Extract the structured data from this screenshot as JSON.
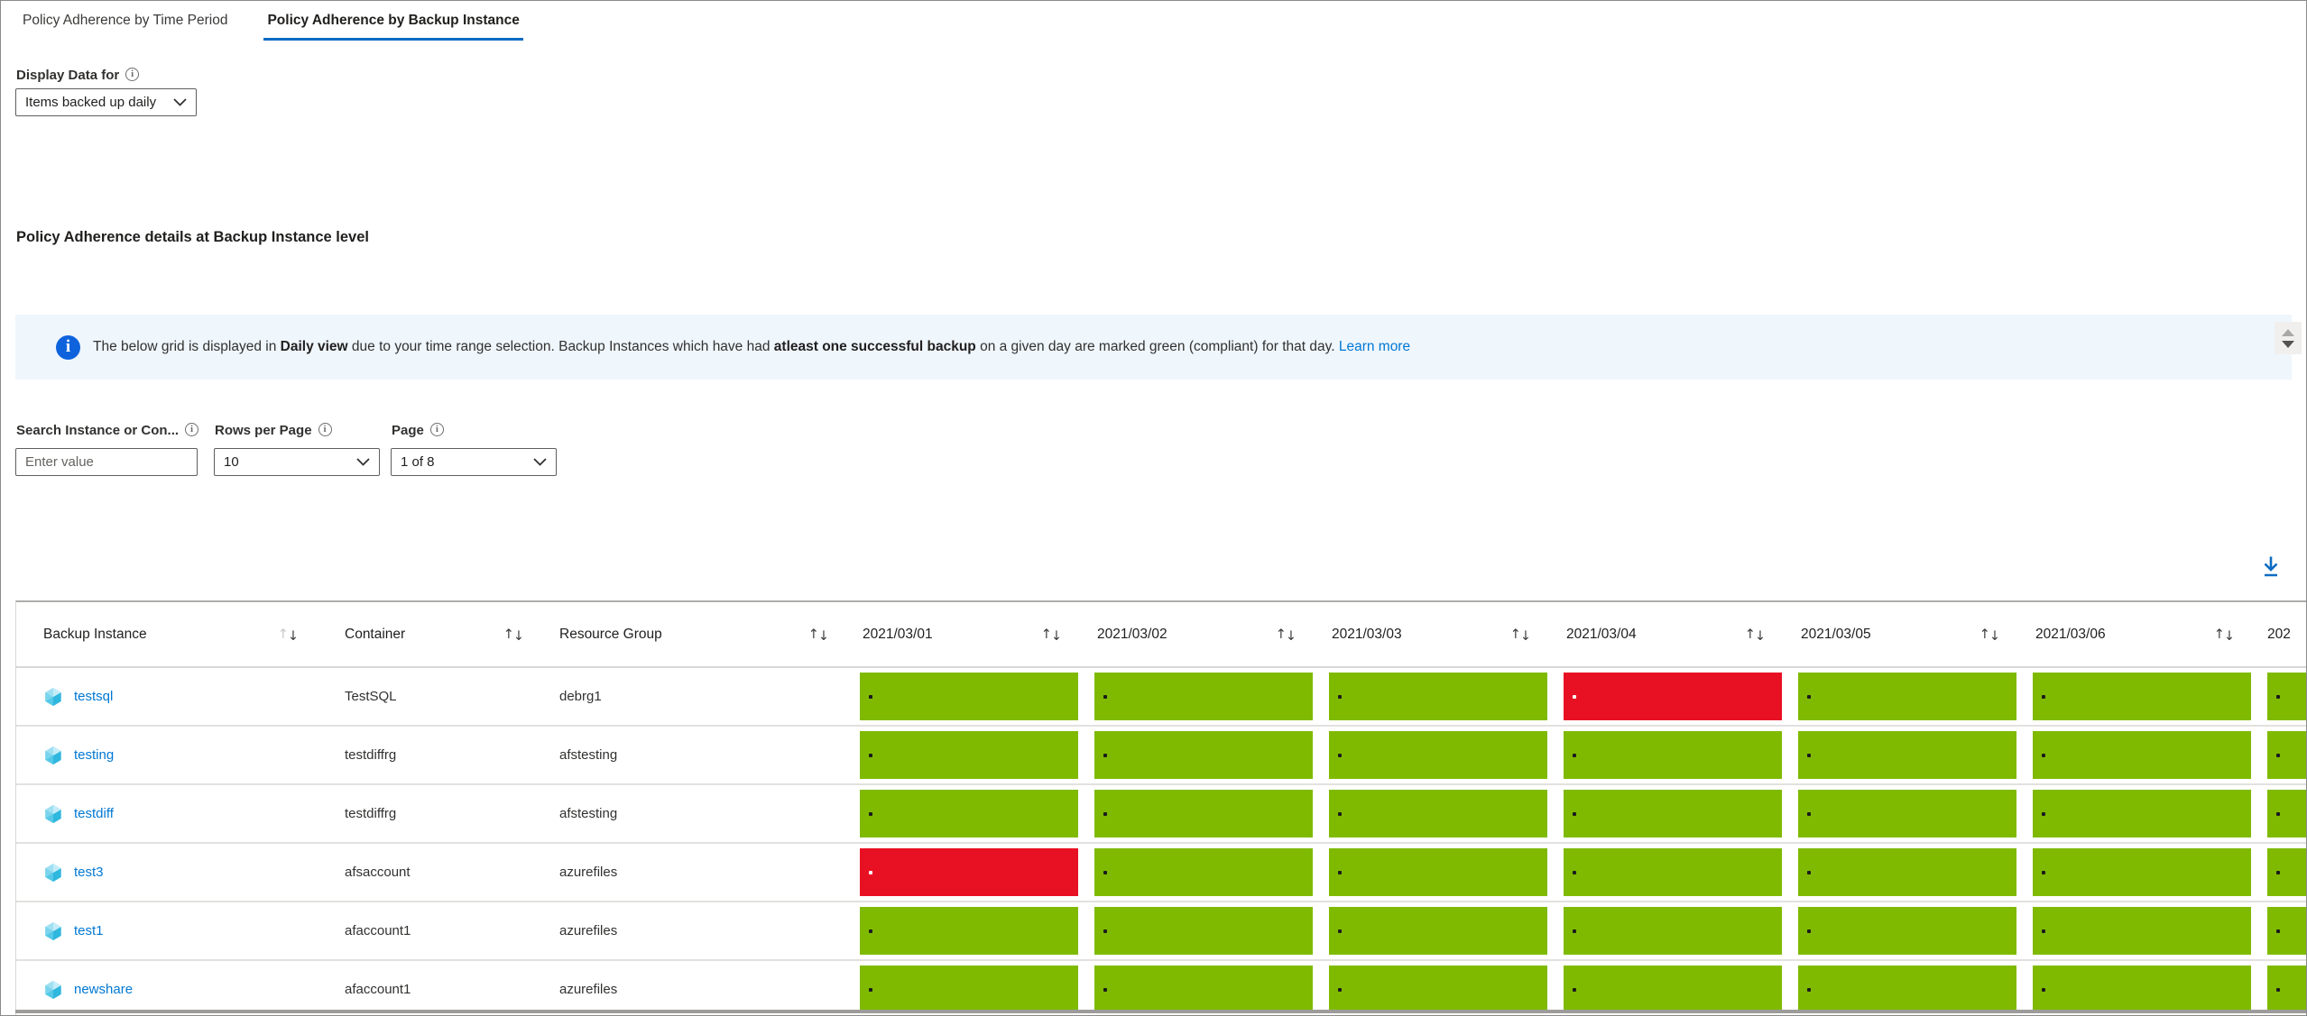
{
  "tabs": [
    {
      "label": "Policy Adherence by Time Period",
      "active": false
    },
    {
      "label": "Policy Adherence by Backup Instance",
      "active": true
    }
  ],
  "display_data": {
    "label": "Display Data for",
    "value": "Items backed up daily"
  },
  "section_title": "Policy Adherence details at Backup Instance level",
  "banner": {
    "segments": [
      {
        "text": "The below grid is displayed in ",
        "bold": false
      },
      {
        "text": "Daily view",
        "bold": true
      },
      {
        "text": " due to your time range selection. Backup Instances which have had ",
        "bold": false
      },
      {
        "text": "atleast one successful backup",
        "bold": true
      },
      {
        "text": " on a given day are marked green (compliant) for that day. ",
        "bold": false
      }
    ],
    "link": "Learn more"
  },
  "controls": {
    "search": {
      "label": "Search Instance or Con...",
      "placeholder": "Enter value"
    },
    "rows_per_page": {
      "label": "Rows per Page",
      "value": "10"
    },
    "page": {
      "label": "Page",
      "value": "1 of 8"
    }
  },
  "table": {
    "columns": [
      "Backup Instance",
      "Container",
      "Resource Group"
    ],
    "date_columns": [
      "2021/03/01",
      "2021/03/02",
      "2021/03/03",
      "2021/03/04",
      "2021/03/05",
      "2021/03/06"
    ],
    "partial_date_column": "202",
    "rows": [
      {
        "instance": "testsql",
        "container": "TestSQL",
        "resource_group": "debrg1",
        "statuses": [
          "green",
          "green",
          "green",
          "red",
          "green",
          "green",
          "green"
        ]
      },
      {
        "instance": "testing",
        "container": "testdiffrg",
        "resource_group": "afstesting",
        "statuses": [
          "green",
          "green",
          "green",
          "green",
          "green",
          "green",
          "green"
        ]
      },
      {
        "instance": "testdiff",
        "container": "testdiffrg",
        "resource_group": "afstesting",
        "statuses": [
          "green",
          "green",
          "green",
          "green",
          "green",
          "green",
          "green"
        ]
      },
      {
        "instance": "test3",
        "container": "afsaccount",
        "resource_group": "azurefiles",
        "statuses": [
          "red",
          "green",
          "green",
          "green",
          "green",
          "green",
          "green"
        ]
      },
      {
        "instance": "test1",
        "container": "afaccount1",
        "resource_group": "azurefiles",
        "statuses": [
          "green",
          "green",
          "green",
          "green",
          "green",
          "green",
          "green"
        ]
      },
      {
        "instance": "newshare",
        "container": "afaccount1",
        "resource_group": "azurefiles",
        "statuses": [
          "green",
          "green",
          "green",
          "green",
          "green",
          "green",
          "green"
        ]
      }
    ]
  },
  "colors": {
    "compliant": "#7FBA00",
    "non_compliant": "#E81123",
    "link": "#0078D4",
    "accent": "#0B6BC2",
    "banner_bg": "#EFF6FC"
  }
}
